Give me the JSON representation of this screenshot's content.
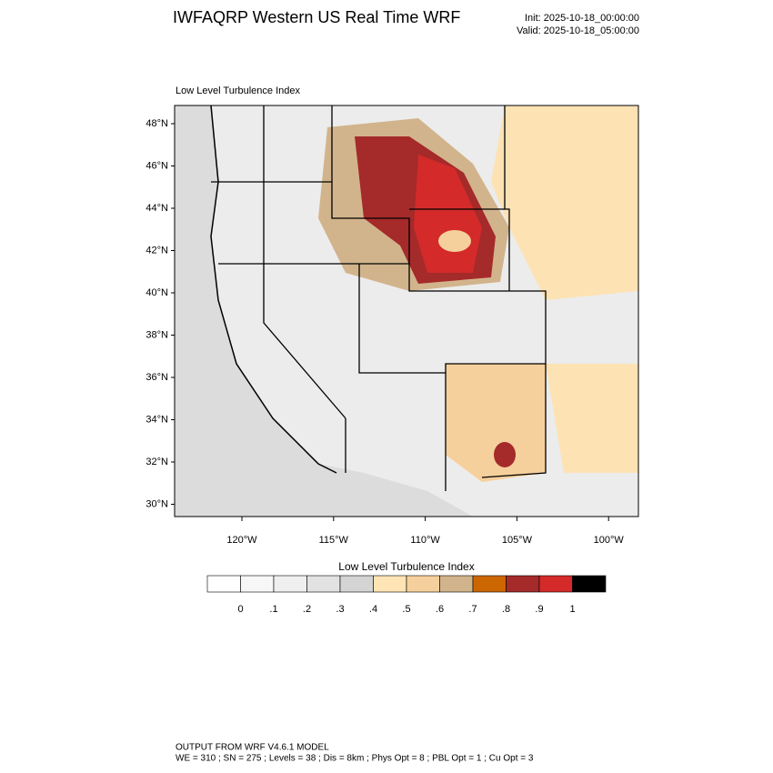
{
  "header": {
    "title": "IWFAQRP Western US Real Time WRF",
    "init": "Init: 2025-10-18_00:00:00",
    "valid": "Valid: 2025-10-18_05:00:00"
  },
  "map": {
    "title": "Low Level Turbulence Index",
    "lat_labels": [
      "48°N",
      "46°N",
      "44°N",
      "42°N",
      "40°N",
      "38°N",
      "36°N",
      "34°N",
      "32°N",
      "30°N"
    ],
    "lon_labels": [
      "120°W",
      "115°W",
      "110°W",
      "105°W",
      "100°W"
    ]
  },
  "colorbar": {
    "title": "Low Level Turbulence Index",
    "labels": [
      "0",
      ".1",
      ".2",
      ".3",
      ".4",
      ".5",
      ".6",
      ".7",
      ".8",
      ".9",
      "1"
    ],
    "colors": [
      "#ffffff",
      "#f7f7f7",
      "#efefef",
      "#e2e2e2",
      "#d4d4d4",
      "#ffe4b5",
      "#f6d09c",
      "#d2b48c",
      "#cc6600",
      "#a52a2a",
      "#d42a2a",
      "#000000"
    ]
  },
  "footer": {
    "line1": "OUTPUT FROM WRF V4.6.1 MODEL",
    "line2": "WE = 310 ; SN = 275 ; Levels = 38 ; Dis = 8km ; Phys Opt = 8 ; PBL Opt = 1 ; Cu Opt = 3"
  }
}
